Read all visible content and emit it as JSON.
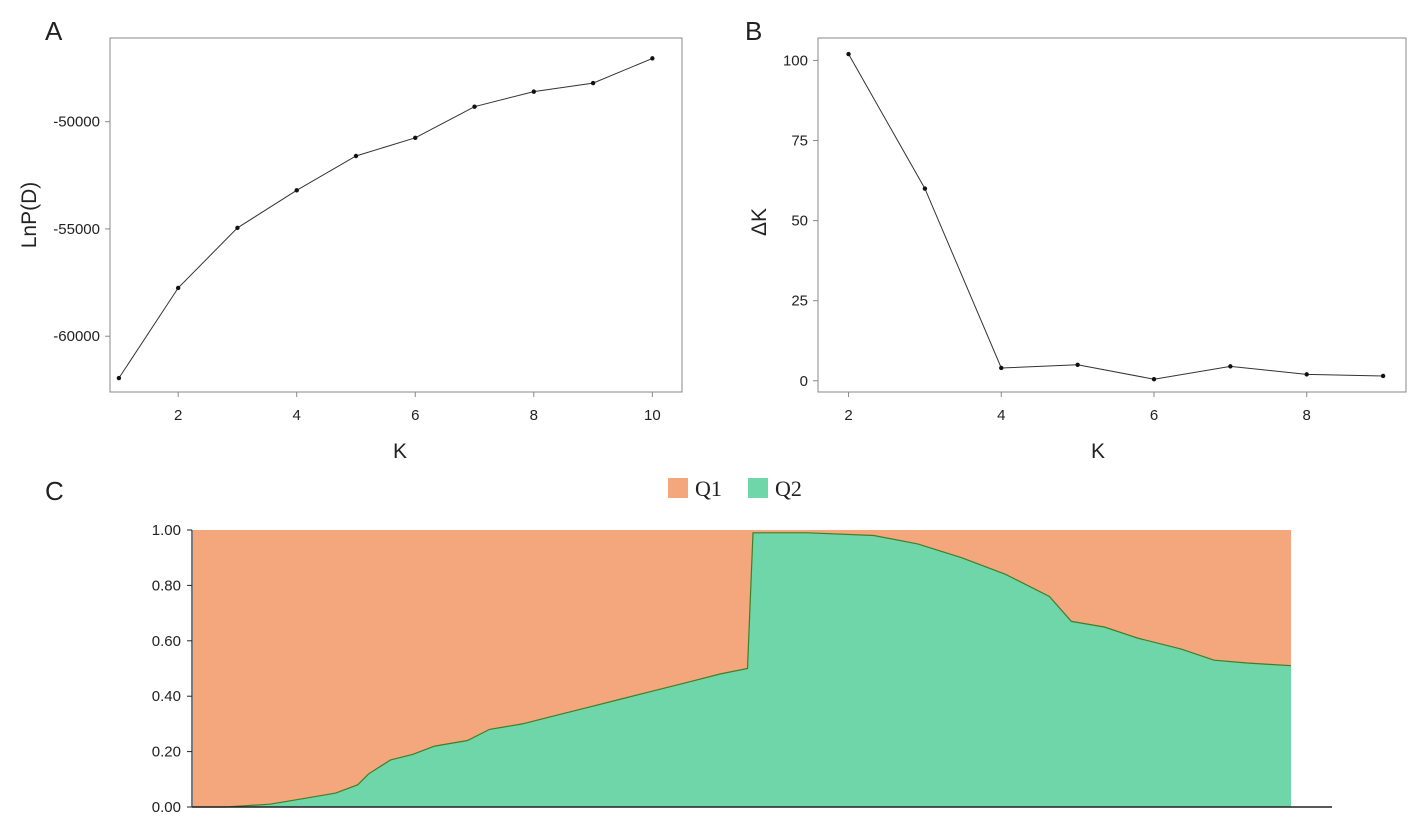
{
  "panels": {
    "a": "A",
    "b": "B",
    "c": "C"
  },
  "chart_data": [
    {
      "id": "A",
      "type": "line",
      "xlabel": "K",
      "ylabel": "LnP(D)",
      "x": [
        1,
        2,
        3,
        4,
        5,
        6,
        7,
        8,
        9,
        10
      ],
      "y": [
        -61950,
        -57750,
        -54950,
        -53200,
        -51600,
        -50750,
        -49300,
        -48600,
        -48200,
        -47050
      ],
      "xlim": [
        0.85,
        10.5
      ],
      "ylim": [
        -62600,
        -46100
      ],
      "xticks": [
        2,
        4,
        6,
        8,
        10
      ],
      "xtick_labels": [
        "2",
        "4",
        "6",
        "8",
        "10"
      ],
      "yticks": [
        -60000,
        -55000,
        -50000
      ],
      "ytick_labels": [
        "-60000",
        "-55000",
        "-50000"
      ],
      "grid": false
    },
    {
      "id": "B",
      "type": "line",
      "xlabel": "K",
      "ylabel": "ΔK",
      "x": [
        2,
        3,
        4,
        5,
        6,
        7,
        8,
        9
      ],
      "y": [
        102,
        60,
        4,
        5,
        0.5,
        4.5,
        2,
        1.5
      ],
      "xlim": [
        1.6,
        9.3
      ],
      "ylim": [
        -3.5,
        107
      ],
      "xticks": [
        2,
        4,
        6,
        8
      ],
      "xtick_labels": [
        "2",
        "4",
        "6",
        "8"
      ],
      "yticks": [
        0,
        25,
        50,
        75,
        100
      ],
      "ytick_labels": [
        "0",
        "25",
        "50",
        "75",
        "100"
      ],
      "grid": false
    },
    {
      "id": "C",
      "type": "area",
      "stacked": true,
      "legend": "top",
      "ylim": [
        0,
        1
      ],
      "yticks": [
        0,
        0.2,
        0.4,
        0.6,
        0.8,
        1.0
      ],
      "ytick_labels": [
        "0.00",
        "0.20",
        "0.40",
        "0.60",
        "0.80",
        "1.00"
      ],
      "x": [
        0,
        0.03,
        0.07,
        0.1,
        0.13,
        0.15,
        0.16,
        0.18,
        0.2,
        0.22,
        0.25,
        0.27,
        0.3,
        0.33,
        0.36,
        0.39,
        0.42,
        0.45,
        0.48,
        0.505,
        0.51,
        0.56,
        0.62,
        0.66,
        0.7,
        0.74,
        0.78,
        0.8,
        0.83,
        0.86,
        0.9,
        0.93,
        0.96,
        1.0
      ],
      "series": [
        {
          "name": "Q2",
          "color": "#6ED6A8",
          "values": [
            0,
            0,
            0.01,
            0.03,
            0.05,
            0.08,
            0.12,
            0.17,
            0.19,
            0.22,
            0.24,
            0.28,
            0.3,
            0.33,
            0.36,
            0.39,
            0.42,
            0.45,
            0.48,
            0.5,
            0.99,
            0.99,
            0.98,
            0.95,
            0.9,
            0.84,
            0.76,
            0.67,
            0.65,
            0.61,
            0.57,
            0.53,
            0.52,
            0.51
          ]
        },
        {
          "name": "Q1",
          "color": "#F4A67C",
          "values": [
            1,
            1,
            0.99,
            0.97,
            0.95,
            0.92,
            0.88,
            0.83,
            0.81,
            0.78,
            0.76,
            0.72,
            0.7,
            0.67,
            0.64,
            0.61,
            0.58,
            0.55,
            0.52,
            0.5,
            0.01,
            0.01,
            0.02,
            0.05,
            0.1,
            0.16,
            0.24,
            0.33,
            0.35,
            0.39,
            0.43,
            0.47,
            0.48,
            0.49
          ]
        }
      ],
      "legend_labels": [
        "Q1",
        "Q2"
      ]
    }
  ],
  "colors": {
    "q1": "#F4A67C",
    "q2": "#6ED6A8",
    "line": "#333333",
    "axis": "#888888"
  }
}
